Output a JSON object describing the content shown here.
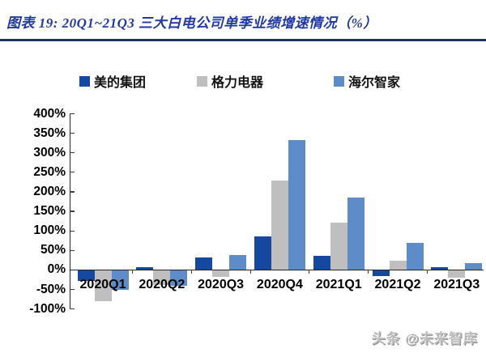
{
  "header": {
    "title": "图表 19:  20Q1~21Q3 三大白电公司单季业绩增速情况（%）"
  },
  "legend": {
    "items": [
      "美的集团",
      "格力电器",
      "海尔智家"
    ]
  },
  "chart_data": {
    "type": "bar",
    "title": "20Q1~21Q3 三大白电公司单季业绩增速情况（%）",
    "categories": [
      "2020Q1",
      "2020Q2",
      "2020Q3",
      "2020Q4",
      "2021Q1",
      "2021Q2",
      "2021Q3"
    ],
    "series": [
      {
        "name": "美的集团",
        "color": "#15489F",
        "values": [
          -26,
          7,
          32,
          85,
          37,
          -14,
          8
        ]
      },
      {
        "name": "格力电器",
        "color": "#BFBFBF",
        "values": [
          -78,
          -37,
          -17,
          228,
          121,
          23,
          -18
        ]
      },
      {
        "name": "海尔智家",
        "color": "#5E8CC9",
        "values": [
          -50,
          -39,
          38,
          332,
          185,
          69,
          17
        ]
      }
    ],
    "xlabel": "",
    "ylabel": "",
    "ylim": [
      -100,
      400
    ],
    "ytick_step": 50,
    "ytick_suffix": "%",
    "grid": false,
    "legend_position": "top"
  },
  "footer": {
    "watermark": "头条 @未来智库"
  },
  "colors": {
    "title": "#2139A3",
    "rule": "#17375E",
    "axis": "#262626"
  }
}
